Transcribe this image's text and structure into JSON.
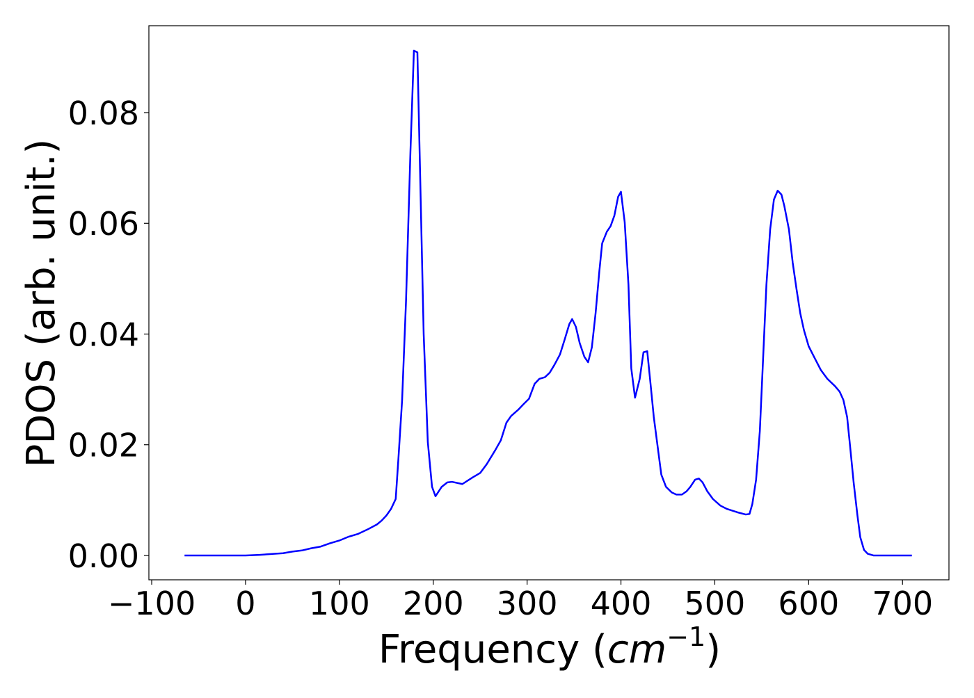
{
  "chart_data": {
    "type": "line",
    "ylabel": "PDOS (arb. unit.)",
    "xlabel": [
      "Frequency (",
      "cm",
      "−1",
      ")"
    ],
    "xlim": [
      -103,
      749.5
    ],
    "ylim": [
      -0.0044,
      0.0957
    ],
    "xticks": [
      {
        "value": -100,
        "label": "−100"
      },
      0,
      100,
      200,
      300,
      400,
      500,
      600,
      700
    ],
    "yticks": [
      {
        "value": 0,
        "label": "0.00"
      },
      0.02,
      0.04,
      0.06,
      0.08
    ],
    "series": [
      {
        "name": "PDOS",
        "color": "#0000ff",
        "x": [
          -65,
          0,
          15,
          30,
          40,
          50,
          60,
          70,
          80,
          90,
          100,
          110,
          120,
          130,
          140,
          145,
          150,
          155,
          160,
          163,
          166.8,
          171,
          175.7,
          179.4,
          183.1,
          186,
          189.8,
          194.2,
          198.7,
          202.4,
          209,
          215,
          220,
          231,
          242,
          250,
          257,
          266,
          272,
          278,
          283,
          291,
          296,
          302,
          308,
          313,
          319,
          324,
          329,
          335,
          340,
          345,
          348,
          352,
          356,
          361,
          365,
          369,
          373,
          377,
          380,
          385,
          389,
          393,
          397,
          400,
          404,
          408,
          411,
          415,
          420,
          424,
          428,
          431,
          435,
          440,
          443,
          448,
          454,
          459,
          465,
          470,
          474,
          479,
          483,
          487,
          492,
          498,
          506,
          513,
          524,
          533,
          537,
          540,
          544,
          548,
          552,
          555,
          559,
          563,
          567,
          571,
          574,
          579,
          583,
          587,
          591,
          595,
          600,
          606,
          613,
          620,
          628,
          633,
          637,
          641,
          644,
          648,
          652,
          655,
          659,
          663,
          669,
          710
        ],
        "values": [
          0,
          0,
          0.0001,
          0.0003,
          0.0004,
          0.0007,
          0.0009,
          0.0013,
          0.0016,
          0.0022,
          0.0027,
          0.0034,
          0.0039,
          0.0047,
          0.0056,
          0.0063,
          0.0072,
          0.0084,
          0.0102,
          0.0178,
          0.028,
          0.046,
          0.073,
          0.0912,
          0.0909,
          0.069,
          0.04,
          0.0205,
          0.0124,
          0.0107,
          0.0124,
          0.0132,
          0.0133,
          0.0129,
          0.0141,
          0.0149,
          0.0165,
          0.019,
          0.0208,
          0.024,
          0.0252,
          0.0264,
          0.0273,
          0.0283,
          0.031,
          0.0319,
          0.0322,
          0.033,
          0.0344,
          0.0363,
          0.039,
          0.0418,
          0.0427,
          0.0413,
          0.0384,
          0.0359,
          0.0349,
          0.0376,
          0.0438,
          0.0514,
          0.0564,
          0.0585,
          0.0595,
          0.0614,
          0.0648,
          0.0657,
          0.0602,
          0.0489,
          0.0338,
          0.0285,
          0.0319,
          0.0367,
          0.0369,
          0.0319,
          0.025,
          0.0185,
          0.0146,
          0.0124,
          0.0114,
          0.011,
          0.011,
          0.0116,
          0.0124,
          0.0137,
          0.0139,
          0.0132,
          0.0116,
          0.0102,
          0.009,
          0.0084,
          0.0078,
          0.0074,
          0.0075,
          0.0093,
          0.0137,
          0.0225,
          0.0376,
          0.0489,
          0.0589,
          0.0643,
          0.0659,
          0.0652,
          0.0632,
          0.0589,
          0.0529,
          0.0482,
          0.0438,
          0.0407,
          0.0378,
          0.0358,
          0.0335,
          0.0319,
          0.0306,
          0.0296,
          0.0281,
          0.025,
          0.02,
          0.0131,
          0.0072,
          0.0033,
          0.001,
          0.0003,
          0,
          0
        ]
      }
    ]
  }
}
